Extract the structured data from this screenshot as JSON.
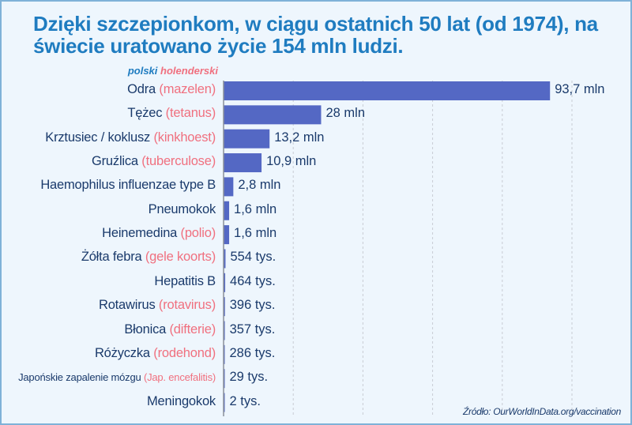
{
  "title": "Dzięki szczepionkom, w ciągu ostatnich 50 lat (od 1974), na świecie uratowano życie 154 mln ludzi.",
  "legend": {
    "polish": "polski",
    "dutch": "holenderski"
  },
  "source": "Źródło: OurWorldInData.org/vaccination",
  "colors": {
    "bar": "#5468c4",
    "title": "#1f7cc0",
    "label": "#1a3a6b",
    "dutch": "#f0707f",
    "background": "#eef6fd"
  },
  "chart_data": {
    "type": "bar",
    "orientation": "horizontal",
    "unit": "mln",
    "xlim": [
      0,
      100
    ],
    "grid": true,
    "legend_placement": "top-left",
    "categories": [
      {
        "pl": "Odra",
        "nl": "(mazelen)"
      },
      {
        "pl": "Tężec",
        "nl": "(tetanus)"
      },
      {
        "pl": "Krztusiec / koklusz",
        "nl": "(kinkhoest)"
      },
      {
        "pl": "Gruźlica",
        "nl": "(tuberculose)"
      },
      {
        "pl": "Haemophilus influenzae type B",
        "nl": ""
      },
      {
        "pl": "Pneumokok",
        "nl": ""
      },
      {
        "pl": "Heinemedina",
        "nl": "(polio)"
      },
      {
        "pl": "Żółta febra",
        "nl": "(gele koorts)"
      },
      {
        "pl": "Hepatitis B",
        "nl": ""
      },
      {
        "pl": "Rotawirus",
        "nl": "(rotavirus)"
      },
      {
        "pl": "Błonica",
        "nl": "(difterie)"
      },
      {
        "pl": "Różyczka",
        "nl": "(rodehond)"
      },
      {
        "pl": "Japońskie zapalenie mózgu",
        "nl": "(Jap. encefalitis)"
      },
      {
        "pl": "Meningokok",
        "nl": ""
      }
    ],
    "values": [
      93.7,
      28,
      13.2,
      10.9,
      2.8,
      1.6,
      1.6,
      0.554,
      0.464,
      0.396,
      0.357,
      0.286,
      0.029,
      0.002
    ],
    "data_labels": [
      "93,7 mln",
      "28 mln",
      "13,2 mln",
      "10,9 mln",
      "2,8 mln",
      "1,6 mln",
      "1,6 mln",
      "554 tys.",
      "464 tys.",
      "396 tys.",
      "357 tys.",
      "286 tys.",
      "29 tys.",
      "2 tys."
    ]
  }
}
